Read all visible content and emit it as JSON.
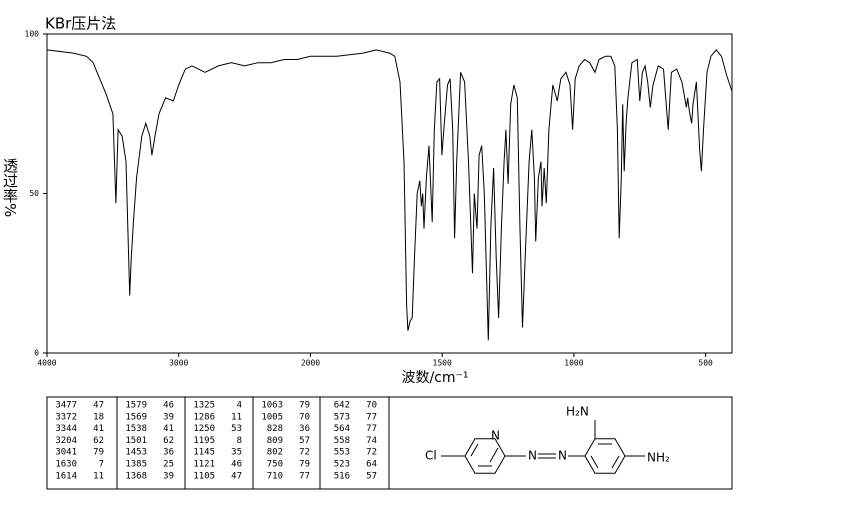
{
  "chart_data": {
    "type": "line",
    "title": "KBr压片法",
    "x_label": "波数/cm⁻¹",
    "y_label": "透过率%",
    "x": [
      4000,
      3800,
      3700,
      3650,
      3600,
      3550,
      3500,
      3477,
      3460,
      3430,
      3400,
      3372,
      3360,
      3344,
      3320,
      3280,
      3250,
      3220,
      3204,
      3180,
      3150,
      3100,
      3041,
      3000,
      2950,
      2900,
      2850,
      2800,
      2700,
      2600,
      2500,
      2400,
      2300,
      2200,
      2100,
      2000,
      1900,
      1800,
      1750,
      1700,
      1680,
      1660,
      1645,
      1635,
      1630,
      1622,
      1614,
      1605,
      1595,
      1585,
      1579,
      1574,
      1569,
      1560,
      1550,
      1538,
      1530,
      1520,
      1510,
      1501,
      1492,
      1480,
      1470,
      1460,
      1453,
      1445,
      1430,
      1415,
      1400,
      1385,
      1378,
      1368,
      1360,
      1350,
      1340,
      1325,
      1315,
      1305,
      1295,
      1286,
      1275,
      1265,
      1258,
      1250,
      1240,
      1228,
      1215,
      1205,
      1195,
      1185,
      1170,
      1160,
      1150,
      1145,
      1135,
      1125,
      1121,
      1113,
      1105,
      1095,
      1080,
      1063,
      1050,
      1030,
      1015,
      1005,
      995,
      980,
      960,
      940,
      920,
      905,
      880,
      860,
      845,
      835,
      828,
      820,
      815,
      809,
      802,
      795,
      780,
      760,
      750,
      740,
      730,
      720,
      710,
      700,
      680,
      660,
      642,
      630,
      610,
      590,
      573,
      568,
      564,
      558,
      553,
      548,
      535,
      523,
      516,
      508,
      495,
      480,
      460,
      440,
      420,
      400
    ],
    "values": [
      95,
      94,
      93,
      91,
      86,
      81,
      75,
      47,
      70,
      68,
      60,
      18,
      30,
      41,
      55,
      68,
      72,
      68,
      62,
      68,
      75,
      80,
      79,
      84,
      89,
      90,
      89,
      88,
      90,
      91,
      90,
      91,
      91,
      92,
      92,
      93,
      93,
      94,
      95,
      94,
      93,
      85,
      60,
      15,
      7,
      10,
      11,
      30,
      50,
      54,
      46,
      50,
      39,
      55,
      65,
      41,
      70,
      85,
      86,
      62,
      72,
      84,
      86,
      70,
      36,
      60,
      88,
      85,
      60,
      25,
      50,
      39,
      62,
      65,
      50,
      4,
      40,
      58,
      30,
      11,
      40,
      60,
      70,
      53,
      78,
      84,
      80,
      40,
      8,
      30,
      60,
      70,
      55,
      35,
      55,
      60,
      46,
      58,
      47,
      70,
      84,
      79,
      86,
      88,
      84,
      70,
      86,
      90,
      92,
      91,
      88,
      92,
      93,
      93,
      90,
      70,
      36,
      55,
      78,
      57,
      72,
      80,
      91,
      92,
      79,
      88,
      90,
      85,
      77,
      84,
      90,
      89,
      70,
      88,
      89,
      85,
      77,
      80,
      77,
      74,
      72,
      78,
      85,
      64,
      57,
      70,
      88,
      93,
      95,
      93,
      87,
      82
    ],
    "color": "#000000",
    "xlim": [
      4000,
      400
    ],
    "xticks": [
      4000,
      3000,
      2000,
      1500,
      1000,
      500
    ],
    "ylim": [
      0,
      100
    ],
    "yticks": [
      0,
      50,
      100
    ]
  },
  "peak_table": {
    "columns": [
      [
        [
          3477,
          47
        ],
        [
          3372,
          18
        ],
        [
          3344,
          41
        ],
        [
          3204,
          62
        ],
        [
          3041,
          79
        ],
        [
          1630,
          7
        ],
        [
          1614,
          11
        ]
      ],
      [
        [
          1579,
          46
        ],
        [
          1569,
          39
        ],
        [
          1538,
          41
        ],
        [
          1501,
          62
        ],
        [
          1453,
          36
        ],
        [
          1385,
          25
        ],
        [
          1368,
          39
        ]
      ],
      [
        [
          1325,
          4
        ],
        [
          1286,
          11
        ],
        [
          1250,
          53
        ],
        [
          1195,
          8
        ],
        [
          1145,
          35
        ],
        [
          1121,
          46
        ],
        [
          1105,
          47
        ]
      ],
      [
        [
          1063,
          79
        ],
        [
          1005,
          70
        ],
        [
          828,
          36
        ],
        [
          809,
          57
        ],
        [
          802,
          72
        ],
        [
          750,
          79
        ],
        [
          710,
          77
        ]
      ],
      [
        [
          642,
          70
        ],
        [
          573,
          77
        ],
        [
          564,
          77
        ],
        [
          558,
          74
        ],
        [
          553,
          72
        ],
        [
          523,
          64
        ],
        [
          516,
          57
        ]
      ]
    ]
  },
  "structure": {
    "labels": [
      "Cl",
      "N",
      "N",
      "N",
      "H₂N",
      "NH₂"
    ]
  }
}
